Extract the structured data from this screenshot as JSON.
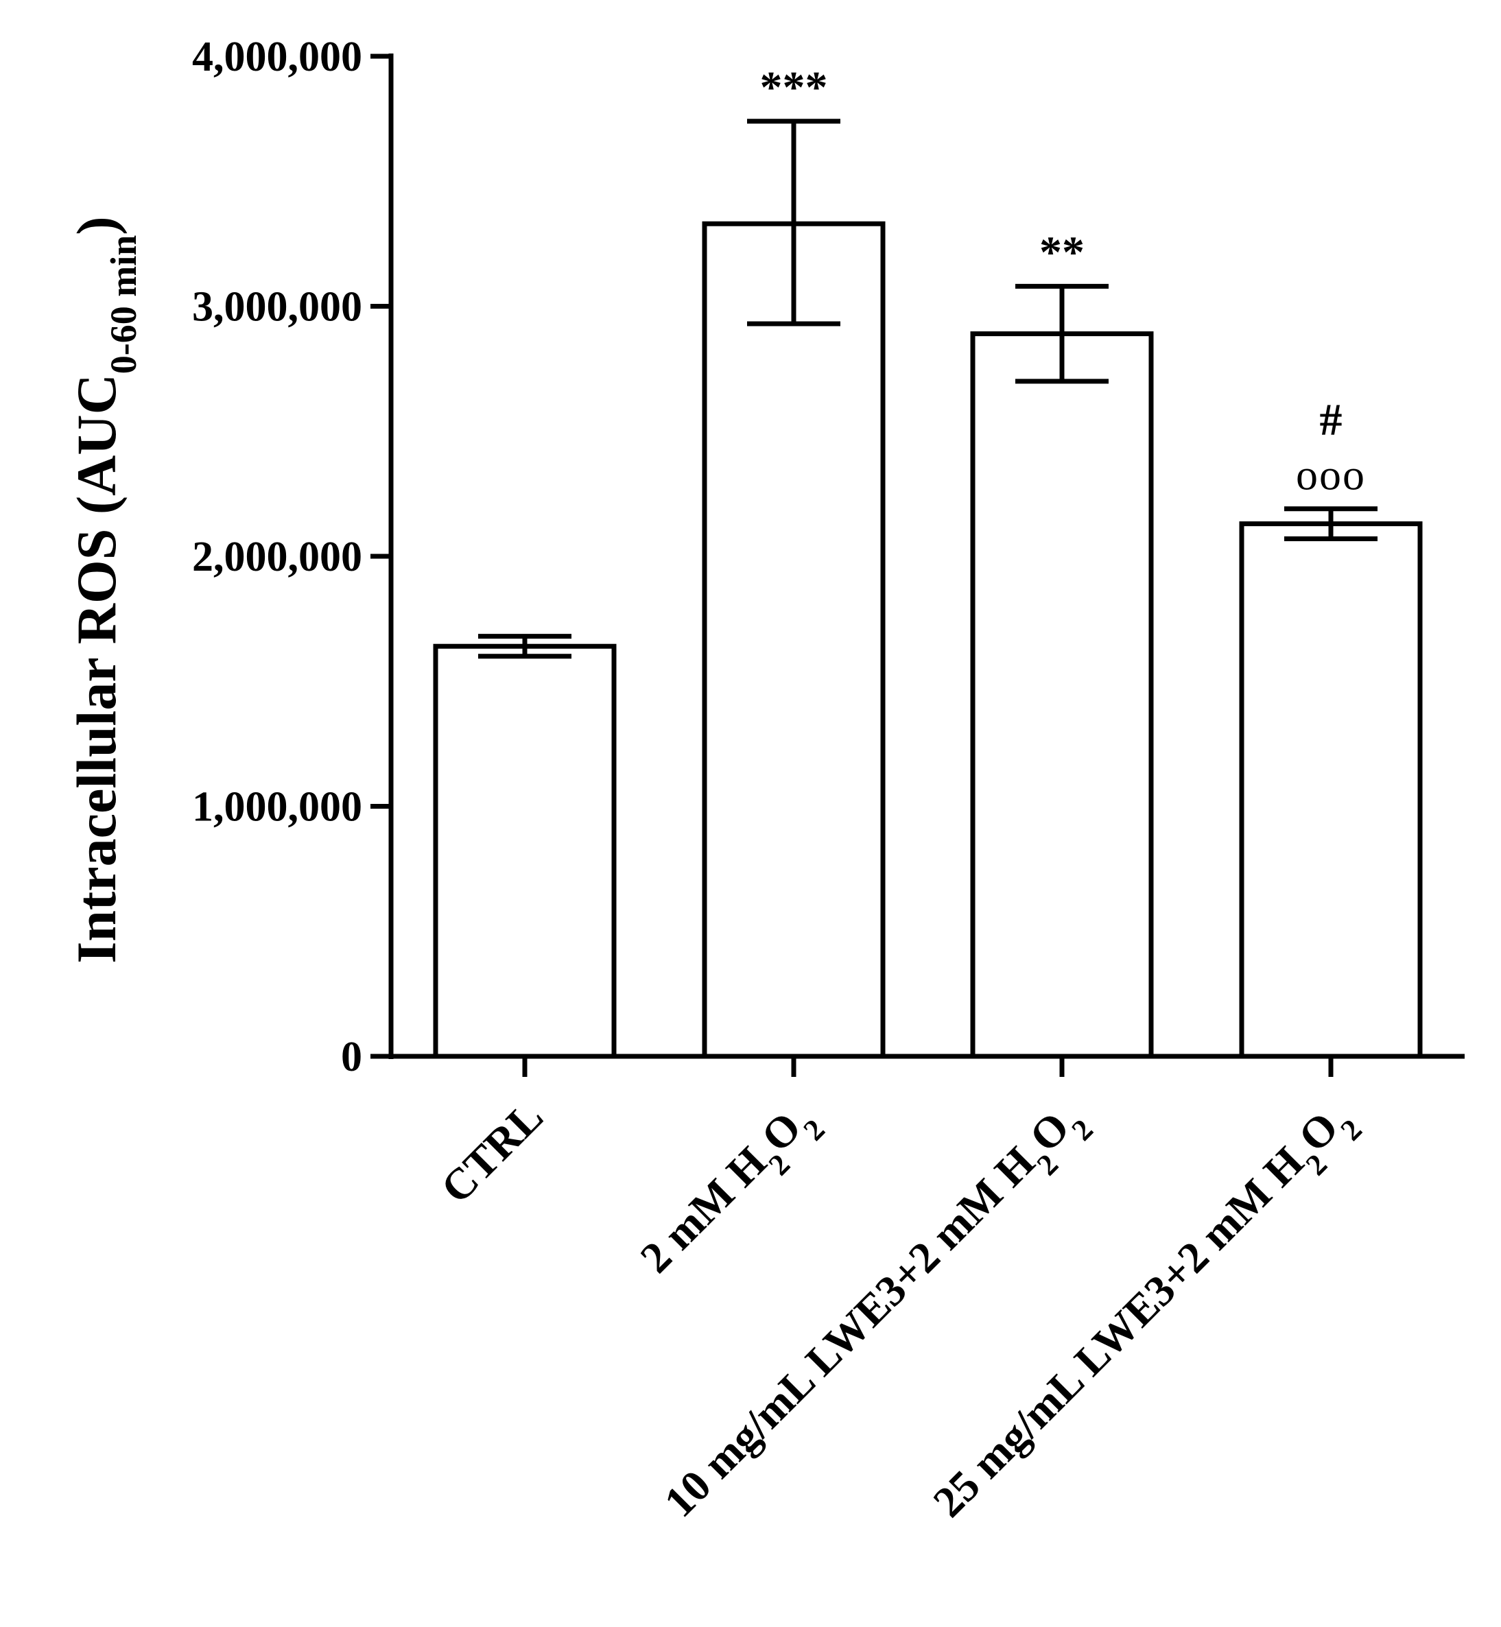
{
  "chart_data": {
    "type": "bar",
    "title": "",
    "xlabel": "",
    "ylabel": {
      "main": "Intracellular ROS (AUC",
      "subscript": "0-60 min",
      "close": ")"
    },
    "ylim": [
      0,
      4000000
    ],
    "yticks": [
      {
        "value": 0,
        "label": "0"
      },
      {
        "value": 1000000,
        "label": "1,000,000"
      },
      {
        "value": 2000000,
        "label": "2,000,000"
      },
      {
        "value": 3000000,
        "label": "3,000,000"
      },
      {
        "value": 4000000,
        "label": "4,000,000"
      }
    ],
    "categories": [
      {
        "label_parts": [
          {
            "t": "CTRL",
            "sub": false
          }
        ]
      },
      {
        "label_parts": [
          {
            "t": "2 mM H",
            "sub": false
          },
          {
            "t": "2",
            "sub": true
          },
          {
            "t": "O",
            "sub": false
          },
          {
            "t": "2",
            "sub": true
          }
        ]
      },
      {
        "label_parts": [
          {
            "t": "10 mg/mL LWE3+2 mM H",
            "sub": false
          },
          {
            "t": "2",
            "sub": true
          },
          {
            "t": "O",
            "sub": false
          },
          {
            "t": "2",
            "sub": true
          }
        ]
      },
      {
        "label_parts": [
          {
            "t": "25 mg/mL LWE3+2 mM H",
            "sub": false
          },
          {
            "t": "2",
            "sub": true
          },
          {
            "t": "O",
            "sub": false
          },
          {
            "t": "2",
            "sub": true
          }
        ]
      }
    ],
    "values": [
      1640000,
      3330000,
      2890000,
      2130000
    ],
    "error_low": [
      1600000,
      2930000,
      2700000,
      2070000
    ],
    "error_high": [
      1680000,
      3740000,
      3080000,
      2190000
    ],
    "annotations": [
      [],
      [
        "***"
      ],
      [
        "**"
      ],
      [
        "#",
        "ooo"
      ]
    ],
    "bar_fill": "#ffffff",
    "bar_stroke": "#000000"
  }
}
